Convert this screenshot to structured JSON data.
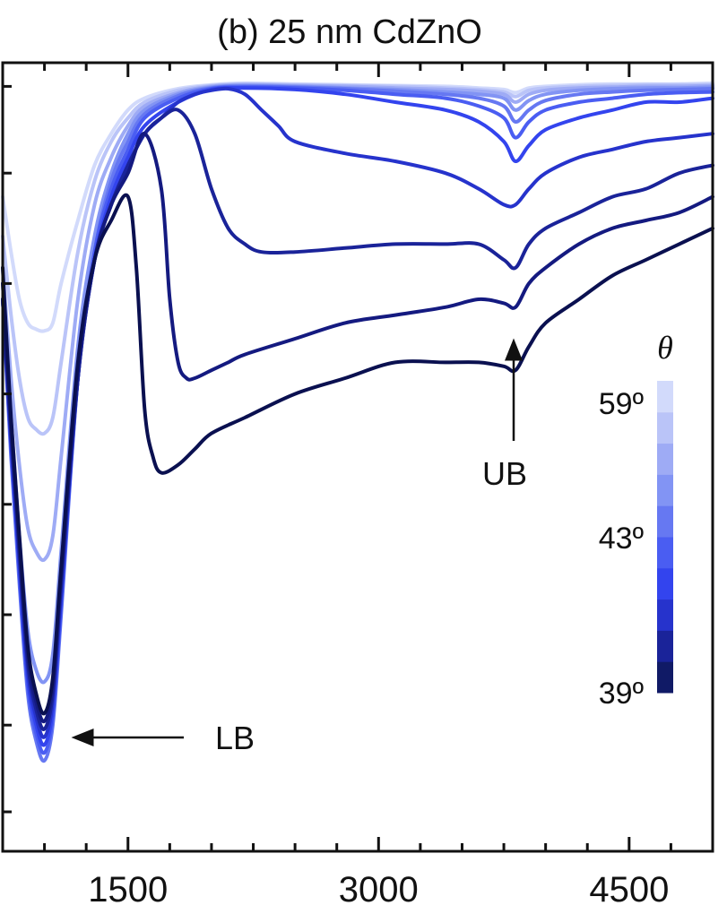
{
  "chart_data": {
    "type": "line",
    "title": "(b) 25 nm CdZnO",
    "xlabel": "",
    "ylabel": "",
    "xlim": [
      750,
      5000
    ],
    "ylim": [
      0,
      1
    ],
    "x_ticks": [
      1500,
      3000,
      4500
    ],
    "x_tick_labels": [
      "1500",
      "3000",
      "4500"
    ],
    "y_tick_values": [
      0.05,
      0.16,
      0.3,
      0.44,
      0.58,
      0.72,
      0.86,
      0.97
    ],
    "grid": false,
    "legend": "colorbar, right",
    "annotations": [
      {
        "text": "LB",
        "arrow": "left",
        "x": 1000,
        "y": 0.11
      },
      {
        "text": "UB",
        "arrow": "up",
        "x": 3820,
        "y": 0.55
      }
    ],
    "colorbar": {
      "title": "θ",
      "labels": [
        "59º",
        "43º",
        "39º"
      ],
      "label_values": [
        59,
        43,
        39
      ],
      "range": [
        39,
        59
      ],
      "colors": [
        "#101a66",
        "#1a2399",
        "#2633cc",
        "#3344ee",
        "#4a5df2",
        "#6678f2",
        "#8294f4",
        "#9eabf5",
        "#bac4f8",
        "#d2dafb"
      ]
    },
    "series": [
      {
        "color": "#0a1050",
        "min_x": 1000,
        "min_y": 0.175,
        "x": [
          750,
          800,
          850,
          900,
          950,
          1000,
          1050,
          1100,
          1200,
          1300,
          1400,
          1500,
          1550,
          1600,
          1650,
          1700,
          1800,
          1900,
          2000,
          2200,
          2500,
          2800,
          3100,
          3400,
          3600,
          3750,
          3820,
          3900,
          4000,
          4200,
          4400,
          4600,
          4800,
          5000
        ],
        "y": [
          0.74,
          0.55,
          0.4,
          0.26,
          0.2,
          0.175,
          0.22,
          0.36,
          0.62,
          0.75,
          0.8,
          0.83,
          0.74,
          0.56,
          0.5,
          0.48,
          0.49,
          0.51,
          0.53,
          0.55,
          0.58,
          0.6,
          0.62,
          0.62,
          0.62,
          0.615,
          0.61,
          0.64,
          0.67,
          0.7,
          0.73,
          0.75,
          0.77,
          0.79
        ]
      },
      {
        "color": "#141a80",
        "min_x": 1000,
        "min_y": 0.165,
        "x": [
          750,
          800,
          850,
          900,
          950,
          1000,
          1050,
          1100,
          1200,
          1300,
          1400,
          1500,
          1600,
          1700,
          1750,
          1800,
          1850,
          1900,
          2000,
          2100,
          2200,
          2500,
          2800,
          3100,
          3400,
          3600,
          3750,
          3820,
          3900,
          4000,
          4200,
          4400,
          4600,
          4800,
          5000
        ],
        "y": [
          0.72,
          0.54,
          0.39,
          0.25,
          0.19,
          0.165,
          0.21,
          0.35,
          0.61,
          0.75,
          0.82,
          0.86,
          0.91,
          0.84,
          0.7,
          0.62,
          0.6,
          0.6,
          0.61,
          0.62,
          0.63,
          0.65,
          0.67,
          0.68,
          0.69,
          0.7,
          0.695,
          0.69,
          0.72,
          0.74,
          0.77,
          0.79,
          0.8,
          0.81,
          0.83
        ]
      },
      {
        "color": "#1a2399",
        "min_x": 1000,
        "min_y": 0.155,
        "x": [
          750,
          800,
          850,
          900,
          950,
          1000,
          1050,
          1100,
          1200,
          1300,
          1400,
          1500,
          1600,
          1700,
          1800,
          1900,
          2000,
          2100,
          2200,
          2300,
          2500,
          2800,
          3100,
          3400,
          3600,
          3750,
          3820,
          3900,
          4000,
          4200,
          4400,
          4600,
          4800,
          5000
        ],
        "y": [
          0.7,
          0.53,
          0.38,
          0.24,
          0.18,
          0.155,
          0.2,
          0.34,
          0.6,
          0.75,
          0.82,
          0.87,
          0.91,
          0.93,
          0.94,
          0.91,
          0.84,
          0.79,
          0.77,
          0.76,
          0.76,
          0.765,
          0.77,
          0.77,
          0.77,
          0.75,
          0.74,
          0.77,
          0.79,
          0.81,
          0.83,
          0.84,
          0.86,
          0.87
        ]
      },
      {
        "color": "#2633cc",
        "min_x": 1000,
        "min_y": 0.145,
        "x": [
          750,
          800,
          850,
          900,
          950,
          1000,
          1050,
          1100,
          1200,
          1300,
          1400,
          1500,
          1600,
          1700,
          1800,
          1900,
          2000,
          2100,
          2200,
          2300,
          2400,
          2500,
          2800,
          3100,
          3400,
          3600,
          3750,
          3820,
          3900,
          4000,
          4200,
          4400,
          4600,
          4800,
          5000
        ],
        "y": [
          0.7,
          0.52,
          0.37,
          0.23,
          0.17,
          0.145,
          0.19,
          0.33,
          0.6,
          0.75,
          0.82,
          0.87,
          0.91,
          0.93,
          0.95,
          0.96,
          0.965,
          0.967,
          0.96,
          0.94,
          0.92,
          0.9,
          0.885,
          0.875,
          0.86,
          0.84,
          0.82,
          0.82,
          0.84,
          0.86,
          0.88,
          0.89,
          0.9,
          0.905,
          0.91
        ]
      },
      {
        "color": "#3344ee",
        "min_x": 1000,
        "min_y": 0.135,
        "x": [
          750,
          800,
          850,
          900,
          950,
          1000,
          1050,
          1100,
          1200,
          1300,
          1400,
          1500,
          1600,
          1800,
          2000,
          2200,
          2500,
          2800,
          3100,
          3400,
          3600,
          3750,
          3820,
          3900,
          4000,
          4200,
          4400,
          4600,
          4800,
          5000
        ],
        "y": [
          0.7,
          0.52,
          0.36,
          0.22,
          0.16,
          0.135,
          0.18,
          0.32,
          0.6,
          0.75,
          0.83,
          0.88,
          0.92,
          0.95,
          0.966,
          0.968,
          0.966,
          0.96,
          0.95,
          0.94,
          0.925,
          0.9,
          0.875,
          0.895,
          0.915,
          0.93,
          0.94,
          0.95,
          0.95,
          0.955
        ]
      },
      {
        "color": "#4a5df2",
        "min_x": 1000,
        "min_y": 0.125,
        "x": [
          750,
          800,
          850,
          900,
          950,
          1000,
          1050,
          1100,
          1200,
          1300,
          1400,
          1500,
          1600,
          1800,
          2000,
          2200,
          2500,
          2800,
          3100,
          3400,
          3600,
          3750,
          3820,
          3900,
          4000,
          4200,
          4400,
          4600,
          4800,
          5000
        ],
        "y": [
          0.7,
          0.51,
          0.35,
          0.21,
          0.15,
          0.125,
          0.17,
          0.31,
          0.6,
          0.76,
          0.84,
          0.89,
          0.93,
          0.955,
          0.967,
          0.969,
          0.968,
          0.965,
          0.96,
          0.955,
          0.945,
          0.93,
          0.905,
          0.925,
          0.94,
          0.95,
          0.955,
          0.96,
          0.962,
          0.963
        ]
      },
      {
        "color": "#6678f2",
        "min_x": 1000,
        "min_y": 0.115,
        "x": [
          750,
          800,
          850,
          900,
          950,
          1000,
          1050,
          1100,
          1200,
          1300,
          1400,
          1500,
          1600,
          1800,
          2000,
          2200,
          2500,
          2800,
          3100,
          3400,
          3600,
          3750,
          3820,
          3900,
          4000,
          4200,
          4400,
          4600,
          4800,
          5000
        ],
        "y": [
          0.7,
          0.5,
          0.34,
          0.2,
          0.14,
          0.115,
          0.16,
          0.3,
          0.6,
          0.76,
          0.85,
          0.9,
          0.935,
          0.958,
          0.968,
          0.97,
          0.969,
          0.967,
          0.964,
          0.96,
          0.955,
          0.945,
          0.925,
          0.94,
          0.952,
          0.96,
          0.963,
          0.965,
          0.966,
          0.967
        ]
      },
      {
        "color": "#8294f4",
        "min_x": 1000,
        "min_y": 0.215,
        "x": [
          750,
          800,
          850,
          900,
          950,
          1000,
          1050,
          1100,
          1200,
          1300,
          1400,
          1500,
          1600,
          1800,
          2000,
          2200,
          2500,
          2800,
          3100,
          3400,
          3600,
          3750,
          3820,
          3900,
          4000,
          4200,
          4400,
          4600,
          4800,
          5000
        ],
        "y": [
          0.72,
          0.55,
          0.4,
          0.28,
          0.23,
          0.215,
          0.25,
          0.38,
          0.64,
          0.78,
          0.86,
          0.91,
          0.94,
          0.96,
          0.969,
          0.971,
          0.97,
          0.968,
          0.966,
          0.963,
          0.96,
          0.955,
          0.94,
          0.952,
          0.96,
          0.965,
          0.967,
          0.968,
          0.968,
          0.969
        ]
      },
      {
        "color": "#9eabf5",
        "min_x": 1000,
        "min_y": 0.37,
        "x": [
          750,
          800,
          850,
          900,
          950,
          1000,
          1050,
          1100,
          1200,
          1300,
          1400,
          1500,
          1600,
          1800,
          2000,
          2200,
          2500,
          2800,
          3100,
          3400,
          3600,
          3750,
          3820,
          3900,
          4000,
          4200,
          4400,
          4600,
          4800,
          5000
        ],
        "y": [
          0.74,
          0.6,
          0.49,
          0.41,
          0.38,
          0.37,
          0.4,
          0.5,
          0.7,
          0.82,
          0.88,
          0.92,
          0.945,
          0.962,
          0.97,
          0.972,
          0.971,
          0.97,
          0.968,
          0.966,
          0.964,
          0.96,
          0.95,
          0.96,
          0.965,
          0.968,
          0.969,
          0.97,
          0.97,
          0.971
        ]
      },
      {
        "color": "#bac4f8",
        "min_x": 1000,
        "min_y": 0.53,
        "x": [
          750,
          800,
          850,
          900,
          950,
          1000,
          1050,
          1100,
          1200,
          1300,
          1400,
          1500,
          1600,
          1800,
          2000,
          2200,
          2500,
          2800,
          3100,
          3400,
          3600,
          3750,
          3820,
          3900,
          4000,
          4200,
          4400,
          4600,
          4800,
          5000
        ],
        "y": [
          0.78,
          0.68,
          0.6,
          0.55,
          0.535,
          0.53,
          0.55,
          0.62,
          0.76,
          0.85,
          0.9,
          0.93,
          0.95,
          0.965,
          0.971,
          0.973,
          0.972,
          0.971,
          0.97,
          0.968,
          0.966,
          0.963,
          0.957,
          0.965,
          0.968,
          0.97,
          0.971,
          0.972,
          0.972,
          0.972
        ]
      },
      {
        "color": "#d2dafb",
        "min_x": 1000,
        "min_y": 0.66,
        "x": [
          750,
          800,
          850,
          900,
          950,
          1000,
          1050,
          1100,
          1200,
          1300,
          1400,
          1500,
          1600,
          1800,
          2000,
          2200,
          2500,
          2800,
          3100,
          3400,
          3600,
          3750,
          3820,
          3900,
          4000,
          4200,
          4400,
          4600,
          4800,
          5000
        ],
        "y": [
          0.83,
          0.76,
          0.7,
          0.67,
          0.662,
          0.66,
          0.67,
          0.72,
          0.8,
          0.87,
          0.91,
          0.94,
          0.955,
          0.967,
          0.972,
          0.974,
          0.973,
          0.972,
          0.971,
          0.97,
          0.968,
          0.966,
          0.962,
          0.968,
          0.97,
          0.972,
          0.973,
          0.973,
          0.973,
          0.974
        ]
      }
    ]
  }
}
